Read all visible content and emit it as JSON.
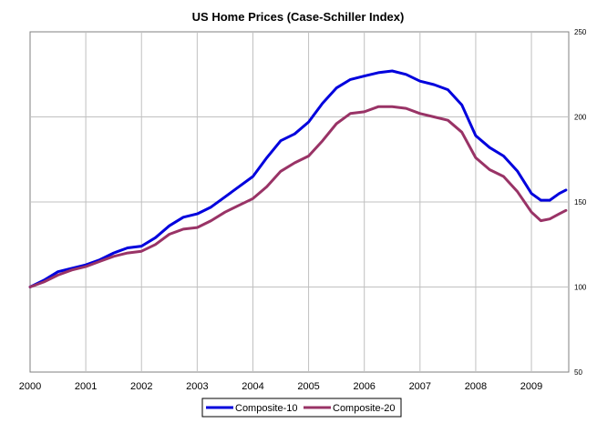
{
  "chart_data": {
    "type": "line",
    "title": "US Home Prices (Case-Schiller Index)",
    "xlabel": "",
    "ylabel": "",
    "x_ticks": [
      "2000",
      "2001",
      "2002",
      "2003",
      "2004",
      "2005",
      "2006",
      "2007",
      "2008",
      "2009"
    ],
    "y_ticks": [
      "50",
      "100",
      "150",
      "200",
      "250"
    ],
    "xlim": [
      2000.0,
      2009.67
    ],
    "ylim": [
      50,
      250
    ],
    "y_axis_side": "right",
    "grid": true,
    "legend_position": "bottom-center",
    "series": [
      {
        "name": "Composite-10",
        "color": "#0000dd",
        "x": [
          2000.0,
          2000.25,
          2000.5,
          2000.75,
          2001.0,
          2001.25,
          2001.5,
          2001.75,
          2002.0,
          2002.25,
          2002.5,
          2002.75,
          2003.0,
          2003.25,
          2003.5,
          2003.75,
          2004.0,
          2004.25,
          2004.5,
          2004.75,
          2005.0,
          2005.25,
          2005.5,
          2005.75,
          2006.0,
          2006.25,
          2006.5,
          2006.75,
          2007.0,
          2007.25,
          2007.5,
          2007.75,
          2008.0,
          2008.25,
          2008.5,
          2008.75,
          2009.0,
          2009.17,
          2009.33,
          2009.5,
          2009.62
        ],
        "values": [
          100,
          104,
          109,
          111,
          113,
          116,
          120,
          123,
          124,
          129,
          136,
          141,
          143,
          147,
          153,
          159,
          165,
          176,
          186,
          190,
          197,
          208,
          217,
          222,
          224,
          226,
          227,
          225,
          221,
          219,
          216,
          207,
          189,
          182,
          177,
          168,
          155,
          151,
          151,
          155,
          157
        ]
      },
      {
        "name": "Composite-20",
        "color": "#993366",
        "x": [
          2000.0,
          2000.25,
          2000.5,
          2000.75,
          2001.0,
          2001.25,
          2001.5,
          2001.75,
          2002.0,
          2002.25,
          2002.5,
          2002.75,
          2003.0,
          2003.25,
          2003.5,
          2003.75,
          2004.0,
          2004.25,
          2004.5,
          2004.75,
          2005.0,
          2005.25,
          2005.5,
          2005.75,
          2006.0,
          2006.25,
          2006.5,
          2006.75,
          2007.0,
          2007.25,
          2007.5,
          2007.75,
          2008.0,
          2008.25,
          2008.5,
          2008.75,
          2009.0,
          2009.17,
          2009.33,
          2009.5,
          2009.62
        ],
        "values": [
          100,
          103,
          107,
          110,
          112,
          115,
          118,
          120,
          121,
          125,
          131,
          134,
          135,
          139,
          144,
          148,
          152,
          159,
          168,
          173,
          177,
          186,
          196,
          202,
          203,
          206,
          206,
          205,
          202,
          200,
          198,
          191,
          176,
          169,
          165,
          156,
          144,
          139,
          140,
          143,
          145
        ]
      }
    ]
  }
}
